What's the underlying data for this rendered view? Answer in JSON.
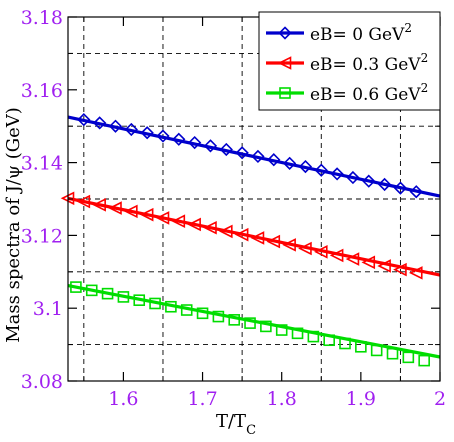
{
  "chart_data": {
    "type": "line",
    "xlabel": "T/T",
    "xlabel_sub": "C",
    "ylabel": "Mass spectra of J/ψ  (GeV)",
    "xlim": [
      1.53,
      2.0
    ],
    "ylim": [
      3.08,
      3.18
    ],
    "xticks": [
      1.6,
      1.7,
      1.8,
      1.9,
      2.0
    ],
    "xtick_labels": [
      "1.6",
      "1.7",
      "1.8",
      "1.9",
      "2"
    ],
    "yticks": [
      3.08,
      3.1,
      3.12,
      3.14,
      3.16,
      3.18
    ],
    "ytick_labels": [
      "3.08",
      "3.1",
      "3.12",
      "3.14",
      "3.16",
      "3.18"
    ],
    "grid": "dashed",
    "grid_x": [
      1.55,
      1.65,
      1.75,
      1.85,
      1.95
    ],
    "grid_y": [
      3.09,
      3.11,
      3.13,
      3.15,
      3.17
    ],
    "legend_position": "top-right",
    "series": [
      {
        "name": "eB= 0 GeV",
        "name_sup": "2",
        "color": "#0000cc",
        "marker": "diamond",
        "x": [
          1.55,
          1.57,
          1.59,
          1.61,
          1.63,
          1.65,
          1.67,
          1.69,
          1.71,
          1.73,
          1.75,
          1.77,
          1.79,
          1.81,
          1.83,
          1.85,
          1.87,
          1.89,
          1.91,
          1.93,
          1.95,
          1.97
        ],
        "y": [
          3.1518,
          3.1509,
          3.15,
          3.1491,
          3.1482,
          3.1473,
          3.1464,
          3.1455,
          3.1446,
          3.1436,
          3.1427,
          3.1417,
          3.1408,
          3.1398,
          3.1389,
          3.1379,
          3.1369,
          3.1359,
          3.1349,
          3.134,
          3.133,
          3.132
        ],
        "curve": [
          [
            1.53,
            3.1525
          ],
          [
            2.0,
            3.1308
          ]
        ]
      },
      {
        "name": "eB= 0.3 GeV",
        "name_sup": "2",
        "color": "#ff0000",
        "marker": "triangle-left",
        "x": [
          1.53,
          1.55,
          1.57,
          1.59,
          1.61,
          1.63,
          1.65,
          1.67,
          1.69,
          1.71,
          1.73,
          1.75,
          1.77,
          1.79,
          1.81,
          1.83,
          1.85,
          1.87,
          1.89,
          1.91,
          1.93,
          1.95,
          1.97
        ],
        "y": [
          3.1302,
          3.1293,
          3.1284,
          3.1275,
          3.1266,
          3.1257,
          3.1248,
          3.1239,
          3.123,
          3.1221,
          3.1211,
          3.1202,
          3.1193,
          3.1183,
          3.1174,
          3.1164,
          3.1155,
          3.1145,
          3.1135,
          3.1126,
          3.1116,
          3.1106,
          3.1097
        ],
        "curve": [
          [
            1.53,
            3.1302
          ],
          [
            2.0,
            3.1091
          ]
        ]
      },
      {
        "name": "eB= 0.6 GeV",
        "name_sup": "2",
        "color": "#00dd00",
        "marker": "square",
        "x": [
          1.54,
          1.56,
          1.58,
          1.6,
          1.62,
          1.64,
          1.66,
          1.68,
          1.7,
          1.72,
          1.74,
          1.76,
          1.78,
          1.8,
          1.82,
          1.84,
          1.86,
          1.88,
          1.9,
          1.92,
          1.94,
          1.96,
          1.98
        ],
        "y": [
          3.1058,
          3.1049,
          3.104,
          3.1031,
          3.1022,
          3.1013,
          3.1004,
          3.0995,
          3.0986,
          3.0977,
          3.0968,
          3.0959,
          3.095,
          3.094,
          3.0931,
          3.0922,
          3.0912,
          3.0903,
          3.0894,
          3.0884,
          3.0875,
          3.0865,
          3.0856
        ],
        "curve": [
          [
            1.53,
            3.1062
          ],
          [
            2.0,
            3.0866
          ]
        ]
      }
    ]
  }
}
